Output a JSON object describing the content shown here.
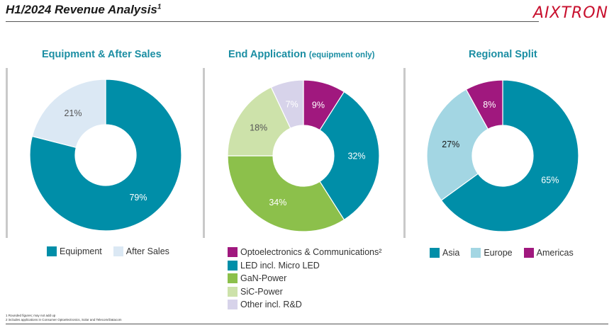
{
  "header": {
    "title": "H1/2024 Revenue Analysis",
    "title_sup": "1",
    "logo": "AIXTRON"
  },
  "panels": [
    {
      "title": "Equipment & After Sales",
      "subtitle": ""
    },
    {
      "title": "End Application",
      "subtitle": "(equipment only)"
    },
    {
      "title": "Regional Split",
      "subtitle": ""
    }
  ],
  "legends": {
    "equipment": [
      "Equipment",
      "After Sales"
    ],
    "application": [
      "Optoelectronics & Communications²",
      "LED incl. Micro LED",
      "GaN-Power",
      "SiC-Power",
      "Other incl. R&D"
    ],
    "regional": [
      "Asia",
      "Europe",
      "Americas"
    ]
  },
  "footnotes": [
    "1 Rounded figures; may not add up",
    "2 includes applications in Consumer Optoelectronics, Solar and Telecom/Datacom"
  ],
  "colors": {
    "teal": "#008ea8",
    "light_blue": "#dbe8f4",
    "magenta": "#a0187e",
    "green": "#8cc04b",
    "light_green": "#cde2aa",
    "lavender": "#d7d3ea",
    "sky": "#a3d6e3",
    "title_blue": "#1b8ea3"
  },
  "chart_data": [
    {
      "type": "pie",
      "title": "Equipment & After Sales",
      "categories": [
        "Equipment",
        "After Sales"
      ],
      "values": [
        79,
        21
      ],
      "labels": [
        "79%",
        "21%"
      ],
      "colors": [
        "#008ea8",
        "#dbe8f4"
      ],
      "label_colors": [
        "#ffffff",
        "#555555"
      ],
      "legend": "bottom"
    },
    {
      "type": "pie",
      "title": "End Application",
      "subtitle": "(equipment only)",
      "categories": [
        "Optoelectronics & Communications²",
        "LED incl. Micro LED",
        "GaN-Power",
        "SiC-Power",
        "Other incl. R&D"
      ],
      "values": [
        9,
        32,
        34,
        18,
        7
      ],
      "labels": [
        "9%",
        "32%",
        "34%",
        "18%",
        "7%"
      ],
      "colors": [
        "#a0187e",
        "#008ea8",
        "#8cc04b",
        "#cde2aa",
        "#d7d3ea"
      ],
      "label_colors": [
        "#ffffff",
        "#ffffff",
        "#ffffff",
        "#555555",
        "#ffffff"
      ],
      "legend": "bottom"
    },
    {
      "type": "pie",
      "title": "Regional Split",
      "categories": [
        "Asia",
        "Europe",
        "Americas"
      ],
      "values": [
        65,
        27,
        8
      ],
      "labels": [
        "65%",
        "27%",
        "8%"
      ],
      "colors": [
        "#008ea8",
        "#a3d6e3",
        "#a0187e"
      ],
      "label_colors": [
        "#ffffff",
        "#1a1a1a",
        "#ffffff"
      ],
      "legend": "bottom"
    }
  ]
}
